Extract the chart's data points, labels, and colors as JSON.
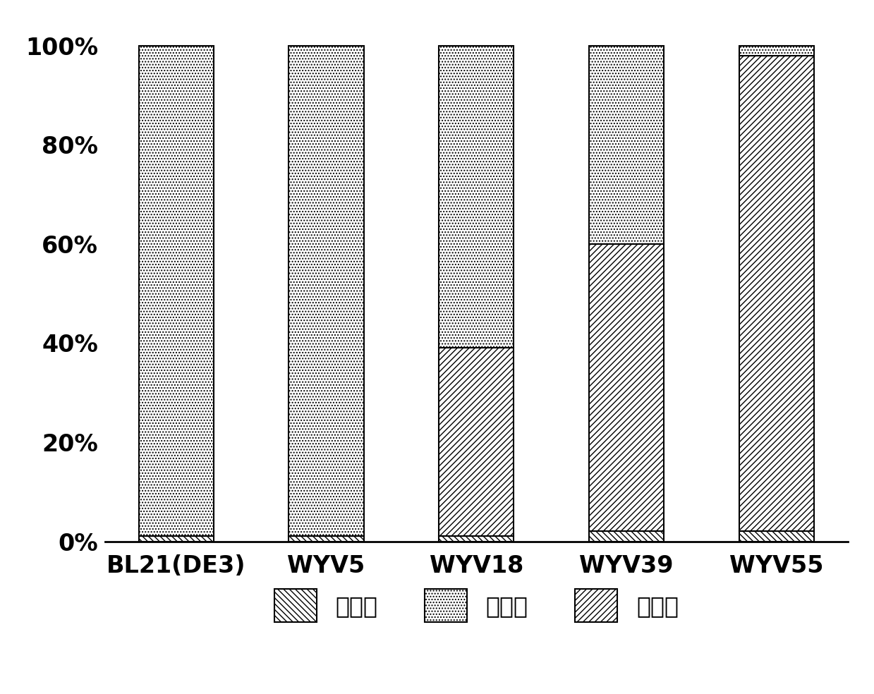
{
  "categories": [
    "BL21(DE3)",
    "WYV5",
    "WYV18",
    "WYV39",
    "WYV55"
  ],
  "vanillin": [
    1.0,
    1.0,
    1.0,
    2.0,
    2.0
  ],
  "vanillyl_alcohol": [
    99.0,
    99.0,
    61.0,
    40.0,
    2.0
  ],
  "vanillic_acid": [
    0.0,
    0.0,
    38.0,
    58.0,
    96.0
  ],
  "legend_labels": [
    "香兰素",
    "香草醇",
    "香草酸"
  ],
  "bar_width": 0.5,
  "background_color": "#ffffff",
  "font_size_ticks": 24,
  "font_size_legend": 24,
  "ylim": [
    0,
    105
  ]
}
